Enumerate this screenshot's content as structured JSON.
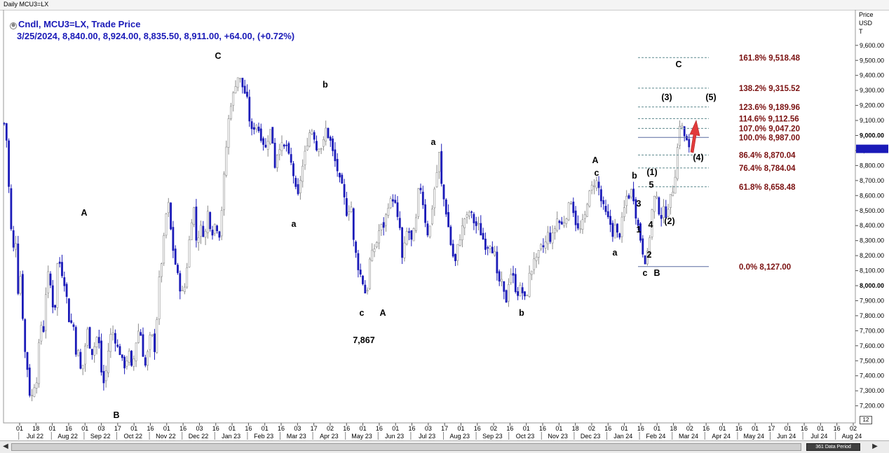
{
  "window": {
    "title": "Daily MCU3=LX"
  },
  "legend": {
    "line1": "Cndl, MCU3=LX, Trade Price",
    "line2": "3/25/2024, 8,840.00, 8,924.00, 8,835.50, 8,911.00, +64.00, (+0.72%)"
  },
  "yaxis": {
    "title_lines": [
      "Price",
      "USD",
      "T"
    ]
  },
  "scroll": {
    "left_arrow": "◀",
    "right_arrow": "▶",
    "period_label": "361 Data Period"
  },
  "corner_label": "12",
  "colors": {
    "up": "#8a8a8a",
    "down": "#1a1ab8",
    "fib_label": "#7a1010",
    "fib_line": "#5f8a8f",
    "baseline": "#5a6aa0",
    "arrow": "#e23b3b",
    "current_price_box": "#1a1ab8"
  },
  "icons": {
    "legend_marker": "circle-icon",
    "annotation_arrow": "red-up-arrow-icon"
  },
  "chart_data": {
    "type": "candlestick",
    "symbol": "MCU3=LX",
    "ylim": [
      7000,
      9700
    ],
    "y_ticks": [
      {
        "value": 7200,
        "label": "7,200.00"
      },
      {
        "value": 7300,
        "label": "7,300.00"
      },
      {
        "value": 7400,
        "label": "7,400.00"
      },
      {
        "value": 7500,
        "label": "7,500.00"
      },
      {
        "value": 7600,
        "label": "7,600.00"
      },
      {
        "value": 7700,
        "label": "7,700.00"
      },
      {
        "value": 7800,
        "label": "7,800.00"
      },
      {
        "value": 7900,
        "label": "7,900.00"
      },
      {
        "value": 8000,
        "label": "8,000.00"
      },
      {
        "value": 8100,
        "label": "8,100.00"
      },
      {
        "value": 8200,
        "label": "8,200.00"
      },
      {
        "value": 8300,
        "label": "8,300.00"
      },
      {
        "value": 8400,
        "label": "8,400.00"
      },
      {
        "value": 8500,
        "label": "8,500.00"
      },
      {
        "value": 8600,
        "label": "8,600.00"
      },
      {
        "value": 8700,
        "label": "8,700.00"
      },
      {
        "value": 8800,
        "label": "8,800.00"
      },
      {
        "value": 8900,
        "label": "8,900.00"
      },
      {
        "value": 9000,
        "label": "9,000.00"
      },
      {
        "value": 9100,
        "label": "9,100.00"
      },
      {
        "value": 9200,
        "label": "9,200.00"
      },
      {
        "value": 9300,
        "label": "9,300.00"
      },
      {
        "value": 9400,
        "label": "9,400.00"
      },
      {
        "value": 9500,
        "label": "9,500.00"
      },
      {
        "value": 9600,
        "label": "9,600.00"
      }
    ],
    "bold_ticks": [
      8000,
      9000
    ],
    "current_price": 8911,
    "x_day_ticks": [
      "01",
      "18",
      "01",
      "16",
      "01",
      "03",
      "17",
      "01",
      "16",
      "01",
      "16",
      "03",
      "16",
      "01",
      "16",
      "01",
      "16",
      "03",
      "17",
      "02",
      "16",
      "01",
      "16",
      "01",
      "16",
      "03",
      "17",
      "01",
      "16",
      "02",
      "16",
      "01",
      "16",
      "01",
      "18",
      "02",
      "16",
      "01",
      "16",
      "01",
      "18",
      "02",
      "16",
      "01",
      "16",
      "01",
      "17",
      "01",
      "16",
      "01",
      "16",
      "02"
    ],
    "x_months": [
      "Jul 22",
      "Aug 22",
      "Sep 22",
      "Oct 22",
      "Nov 22",
      "Dec 22",
      "Jan 23",
      "Feb 23",
      "Mar 23",
      "Apr 23",
      "May 23",
      "Jun 23",
      "Jul 23",
      "Aug 23",
      "Sep 23",
      "Oct 23",
      "Nov 23",
      "Dec 23",
      "Jan 24",
      "Feb 24",
      "Mar 24",
      "Apr 24",
      "May 24",
      "Jun 24",
      "Jul 24",
      "Aug 24"
    ],
    "path_points": [
      [
        0,
        9080
      ],
      [
        3,
        9000
      ],
      [
        8,
        8520
      ],
      [
        12,
        8200
      ],
      [
        16,
        8350
      ],
      [
        20,
        7950
      ],
      [
        24,
        8100
      ],
      [
        28,
        7600
      ],
      [
        32,
        7500
      ],
      [
        35,
        7350
      ],
      [
        38,
        7200
      ],
      [
        42,
        7360
      ],
      [
        45,
        7300
      ],
      [
        48,
        7500
      ],
      [
        52,
        7750
      ],
      [
        56,
        7700
      ],
      [
        60,
        8000
      ],
      [
        64,
        8100
      ],
      [
        68,
        7900
      ],
      [
        72,
        7820
      ],
      [
        76,
        8150
      ],
      [
        80,
        8150
      ],
      [
        84,
        8050
      ],
      [
        88,
        8000
      ],
      [
        90,
        7850
      ],
      [
        94,
        7730
      ],
      [
        98,
        7780
      ],
      [
        102,
        7570
      ],
      [
        106,
        7550
      ],
      [
        110,
        7400
      ],
      [
        114,
        7530
      ],
      [
        118,
        7720
      ],
      [
        122,
        7610
      ],
      [
        126,
        7550
      ],
      [
        130,
        7620
      ],
      [
        134,
        7690
      ],
      [
        138,
        7440
      ],
      [
        142,
        7350
      ],
      [
        146,
        7450
      ],
      [
        150,
        7640
      ],
      [
        154,
        7700
      ],
      [
        158,
        7650
      ],
      [
        162,
        7580
      ],
      [
        166,
        7550
      ],
      [
        170,
        7450
      ],
      [
        174,
        7500
      ],
      [
        178,
        7550
      ],
      [
        182,
        7430
      ],
      [
        186,
        7550
      ],
      [
        190,
        7700
      ],
      [
        194,
        7700
      ],
      [
        198,
        7550
      ],
      [
        202,
        7450
      ],
      [
        206,
        7600
      ],
      [
        210,
        7700
      ],
      [
        214,
        7550
      ],
      [
        218,
        7800
      ],
      [
        222,
        8100
      ],
      [
        226,
        8200
      ],
      [
        230,
        8450
      ],
      [
        234,
        8550
      ],
      [
        238,
        8350
      ],
      [
        242,
        8200
      ],
      [
        246,
        8100
      ],
      [
        250,
        8000
      ],
      [
        254,
        7950
      ],
      [
        258,
        8000
      ],
      [
        262,
        8200
      ],
      [
        266,
        8400
      ],
      [
        270,
        8550
      ],
      [
        274,
        8300
      ],
      [
        278,
        8350
      ],
      [
        282,
        8400
      ],
      [
        286,
        8300
      ],
      [
        290,
        8500
      ],
      [
        294,
        8400
      ],
      [
        298,
        8350
      ],
      [
        302,
        8450
      ],
      [
        306,
        8300
      ],
      [
        310,
        8500
      ],
      [
        314,
        8750
      ],
      [
        318,
        9000
      ],
      [
        322,
        9200
      ],
      [
        326,
        9250
      ],
      [
        330,
        9350
      ],
      [
        334,
        9400
      ],
      [
        338,
        9350
      ],
      [
        342,
        9300
      ],
      [
        346,
        9250
      ],
      [
        350,
        9100
      ],
      [
        354,
        9000
      ],
      [
        358,
        9100
      ],
      [
        362,
        9050
      ],
      [
        366,
        9000
      ],
      [
        370,
        8950
      ],
      [
        374,
        8900
      ],
      [
        378,
        9050
      ],
      [
        382,
        9000
      ],
      [
        386,
        8800
      ],
      [
        390,
        8900
      ],
      [
        394,
        8950
      ],
      [
        398,
        8900
      ],
      [
        402,
        8950
      ],
      [
        406,
        8850
      ],
      [
        410,
        8800
      ],
      [
        414,
        8700
      ],
      [
        418,
        8550
      ],
      [
        422,
        8700
      ],
      [
        426,
        8800
      ],
      [
        430,
        8900
      ],
      [
        434,
        9000
      ],
      [
        438,
        9050
      ],
      [
        442,
        9000
      ],
      [
        446,
        8900
      ],
      [
        450,
        8950
      ],
      [
        454,
        8900
      ],
      [
        458,
        9050
      ],
      [
        462,
        9000
      ],
      [
        466,
        8950
      ],
      [
        470,
        8850
      ],
      [
        474,
        8800
      ],
      [
        478,
        8700
      ],
      [
        482,
        8650
      ],
      [
        486,
        8550
      ],
      [
        490,
        8450
      ],
      [
        494,
        8600
      ],
      [
        498,
        8300
      ],
      [
        502,
        8200
      ],
      [
        506,
        8100
      ],
      [
        510,
        8050
      ],
      [
        514,
        7980
      ],
      [
        517,
        7890
      ],
      [
        520,
        8150
      ],
      [
        524,
        8200
      ],
      [
        528,
        8250
      ],
      [
        532,
        8300
      ],
      [
        536,
        8400
      ],
      [
        540,
        8380
      ],
      [
        544,
        8450
      ],
      [
        548,
        8550
      ],
      [
        552,
        8560
      ],
      [
        556,
        8600
      ],
      [
        560,
        8450
      ],
      [
        564,
        8400
      ],
      [
        568,
        8150
      ],
      [
        572,
        8300
      ],
      [
        576,
        8400
      ],
      [
        580,
        8280
      ],
      [
        584,
        8350
      ],
      [
        588,
        8450
      ],
      [
        592,
        8700
      ],
      [
        596,
        8600
      ],
      [
        600,
        8450
      ],
      [
        604,
        8350
      ],
      [
        608,
        8400
      ],
      [
        612,
        8600
      ],
      [
        616,
        8700
      ],
      [
        620,
        8900
      ],
      [
        624,
        8650
      ],
      [
        628,
        8550
      ],
      [
        632,
        8450
      ],
      [
        636,
        8300
      ],
      [
        640,
        8200
      ],
      [
        644,
        8150
      ],
      [
        648,
        8300
      ],
      [
        652,
        8350
      ],
      [
        656,
        8450
      ],
      [
        660,
        8450
      ],
      [
        664,
        8500
      ],
      [
        668,
        8450
      ],
      [
        672,
        8400
      ],
      [
        676,
        8400
      ],
      [
        680,
        8350
      ],
      [
        684,
        8300
      ],
      [
        688,
        8250
      ],
      [
        692,
        8300
      ],
      [
        696,
        8250
      ],
      [
        700,
        8200
      ],
      [
        704,
        8000
      ],
      [
        708,
        8050
      ],
      [
        712,
        7950
      ],
      [
        716,
        7900
      ],
      [
        720,
        8050
      ],
      [
        724,
        8100
      ],
      [
        728,
        8000
      ],
      [
        732,
        7950
      ],
      [
        736,
        7980
      ],
      [
        740,
        7950
      ],
      [
        744,
        7880
      ],
      [
        748,
        8050
      ],
      [
        752,
        8100
      ],
      [
        756,
        8200
      ],
      [
        760,
        8150
      ],
      [
        764,
        8250
      ],
      [
        768,
        8250
      ],
      [
        772,
        8280
      ],
      [
        776,
        8350
      ],
      [
        780,
        8300
      ],
      [
        784,
        8350
      ],
      [
        788,
        8450
      ],
      [
        792,
        8420
      ],
      [
        796,
        8400
      ],
      [
        800,
        8450
      ],
      [
        804,
        8500
      ],
      [
        808,
        8580
      ],
      [
        812,
        8500
      ],
      [
        816,
        8400
      ],
      [
        820,
        8350
      ],
      [
        824,
        8400
      ],
      [
        828,
        8450
      ],
      [
        832,
        8580
      ],
      [
        836,
        8620
      ],
      [
        840,
        8680
      ],
      [
        844,
        8700
      ],
      [
        848,
        8650
      ],
      [
        852,
        8550
      ],
      [
        856,
        8500
      ],
      [
        860,
        8450
      ],
      [
        864,
        8420
      ],
      [
        868,
        8350
      ],
      [
        872,
        8400
      ],
      [
        876,
        8300
      ],
      [
        880,
        8400
      ],
      [
        884,
        8500
      ],
      [
        888,
        8600
      ],
      [
        892,
        8600
      ],
      [
        896,
        8650
      ],
      [
        900,
        8500
      ],
      [
        904,
        8400
      ],
      [
        908,
        8300
      ],
      [
        912,
        8200
      ],
      [
        916,
        8150
      ],
      [
        920,
        8300
      ],
      [
        924,
        8500
      ],
      [
        928,
        8600
      ],
      [
        932,
        8550
      ],
      [
        936,
        8450
      ],
      [
        940,
        8500
      ],
      [
        944,
        8480
      ],
      [
        948,
        8550
      ],
      [
        952,
        8600
      ],
      [
        956,
        8700
      ],
      [
        960,
        8900
      ],
      [
        964,
        9100
      ],
      [
        967,
        9050
      ],
      [
        970,
        9000
      ],
      [
        974,
        8950
      ],
      [
        977,
        8900
      ],
      [
        979,
        8911
      ]
    ],
    "fib_levels": [
      {
        "label": "161.8% 9,518.48",
        "pct": "161.8%",
        "value": 9518.48
      },
      {
        "label": "138.2% 9,315.52",
        "pct": "138.2%",
        "value": 9315.52
      },
      {
        "label": "123.6% 9,189.96",
        "pct": "123.6%",
        "value": 9189.96
      },
      {
        "label": "114.6% 9,112.56",
        "pct": "114.6%",
        "value": 9112.56
      },
      {
        "label": "107.0% 9,047.20",
        "pct": "107.0%",
        "value": 9047.2
      },
      {
        "label": "100.0% 8,987.00",
        "pct": "100.0%",
        "value": 8987.0
      },
      {
        "label": "86.4%   8,870.04",
        "pct": "86.4%",
        "value": 8870.04
      },
      {
        "label": "76.4%   8,784.04",
        "pct": "76.4%",
        "value": 8784.04
      },
      {
        "label": "61.8%   8,658.48",
        "pct": "61.8%",
        "value": 8658.48
      },
      {
        "label": "0.0%     8,127.00",
        "pct": "0.0%",
        "value": 8127.0
      }
    ],
    "wave_labels": [
      "A",
      "B",
      "C",
      "b",
      "a",
      "c",
      "A",
      "7,867",
      "a",
      "b",
      "A",
      "c",
      "a",
      "b",
      "c",
      "B",
      "C",
      "(3)",
      "(5)",
      "(4)",
      "(1)",
      "5",
      "3",
      "1",
      "4",
      "2",
      "(2)"
    ]
  }
}
